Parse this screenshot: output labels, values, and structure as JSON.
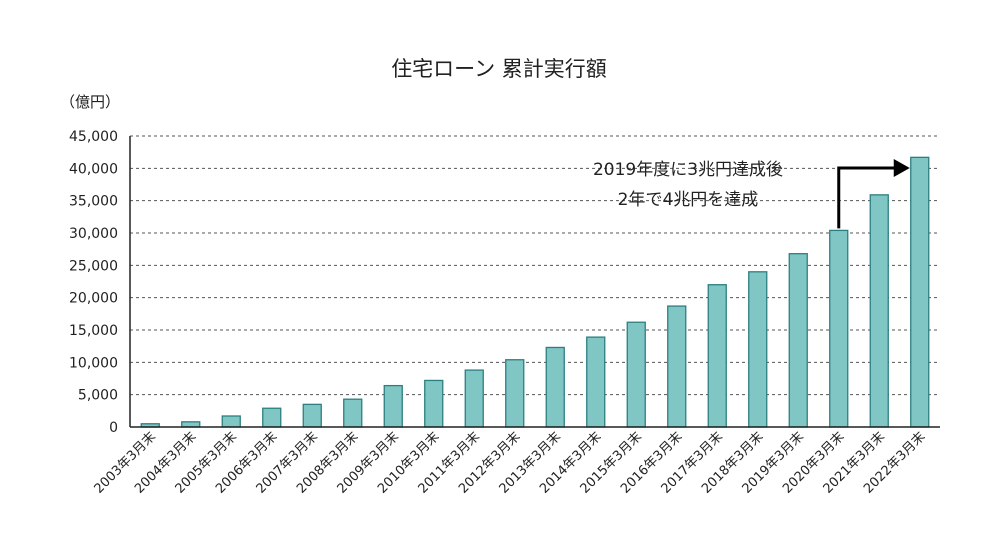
{
  "chart_data": {
    "type": "bar",
    "title": "住宅ローン 累計実行額",
    "unit_label": "（億円）",
    "xlabel": "",
    "ylabel": "",
    "ylim": [
      0,
      45000
    ],
    "yticks": [
      0,
      5000,
      10000,
      15000,
      20000,
      25000,
      30000,
      35000,
      40000,
      45000
    ],
    "ytick_labels": [
      "0",
      "5,000",
      "10,000",
      "15,000",
      "20,000",
      "25,000",
      "30,000",
      "35,000",
      "40,000",
      "45,000"
    ],
    "grid": true,
    "categories": [
      "2003年3月末",
      "2004年3月末",
      "2005年3月末",
      "2006年3月末",
      "2007年3月末",
      "2008年3月末",
      "2009年3月末",
      "2010年3月末",
      "2011年3月末",
      "2012年3月末",
      "2013年3月末",
      "2014年3月末",
      "2015年3月末",
      "2016年3月末",
      "2017年3月末",
      "2018年3月末",
      "2019年3月末",
      "2020年3月末",
      "2021年3月末",
      "2022年3月末"
    ],
    "values": [
      500,
      800,
      1700,
      2900,
      3500,
      4300,
      6400,
      7200,
      8800,
      10400,
      12300,
      13900,
      16200,
      18700,
      22000,
      24000,
      26800,
      30400,
      35900,
      41700
    ],
    "annotation": {
      "lines": [
        "2019年度に3兆円達成後",
        "2年で4兆円を達成"
      ],
      "from_category": "2020年3月末",
      "to_category": "2022年3月末"
    },
    "colors": {
      "bar_fill": "#7fc6c5",
      "bar_stroke": "#2c7f80",
      "grid": "#555555",
      "axis": "#222222",
      "arrow": "#000000"
    }
  }
}
